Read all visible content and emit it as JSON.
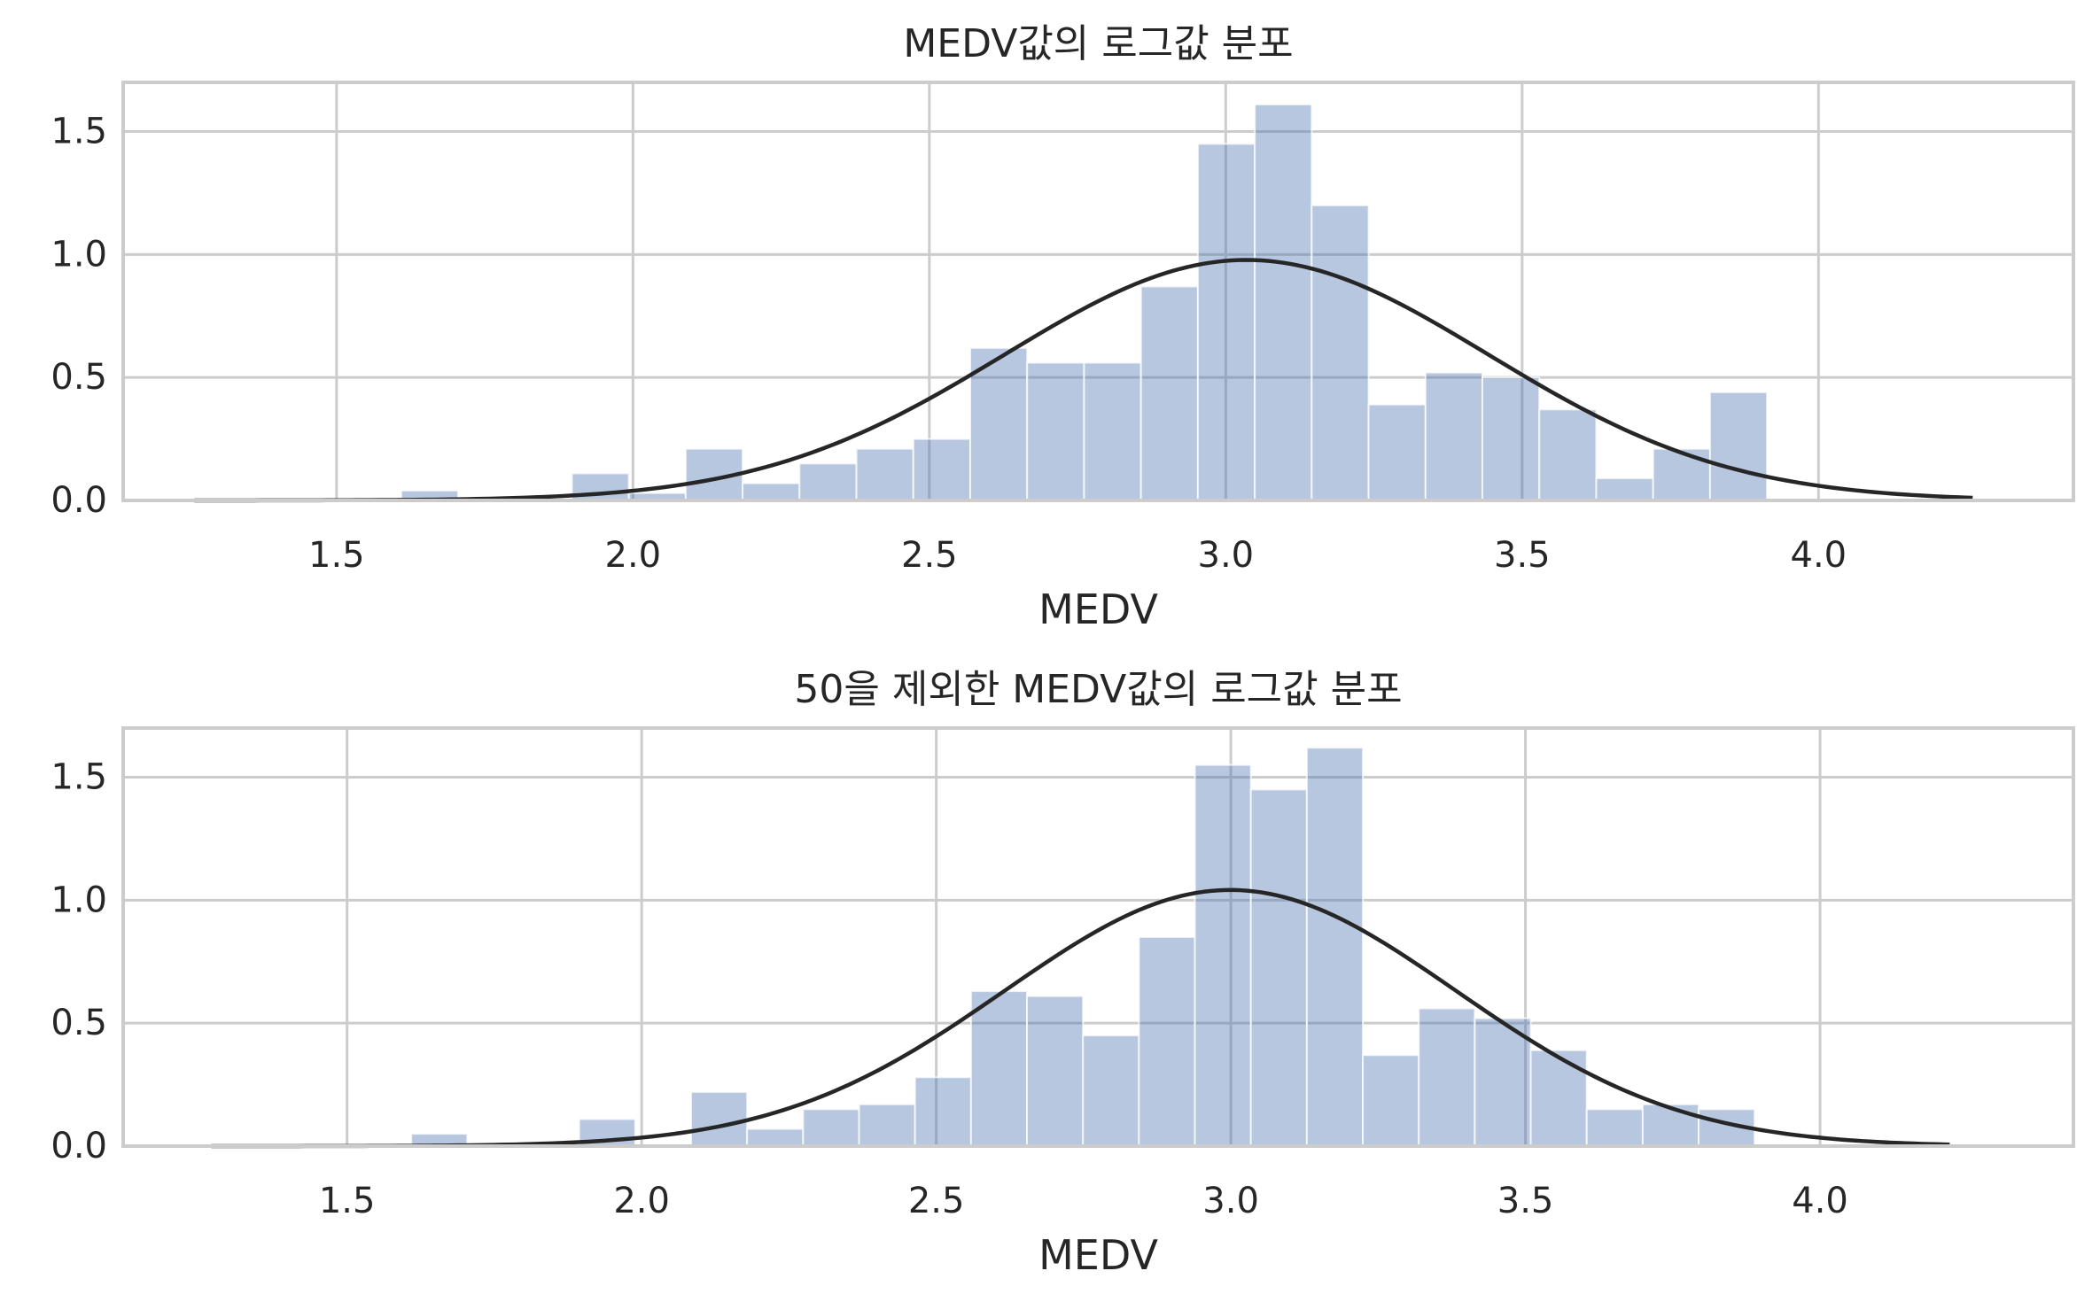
{
  "chart_data": [
    {
      "type": "bar",
      "title": "MEDV값의 로그값 분포",
      "xlabel": "MEDV",
      "ylabel": "",
      "xlim": [
        1.14,
        4.43
      ],
      "ylim": [
        0,
        1.7
      ],
      "xticks": [
        1.5,
        2.0,
        2.5,
        3.0,
        3.5,
        4.0
      ],
      "xtick_labels": [
        "1.5",
        "2.0",
        "2.5",
        "3.0",
        "3.5",
        "4.0"
      ],
      "yticks": [
        0.0,
        0.5,
        1.0,
        1.5
      ],
      "ytick_labels": [
        "0.0",
        "0.5",
        "1.0",
        "1.5"
      ],
      "grid": true,
      "bar_color": "#4c72b0",
      "bar_alpha": 0.4,
      "curve_color": "#262626",
      "bins": {
        "edges": [
          1.609,
          1.705,
          1.801,
          1.897,
          1.993,
          2.089,
          2.185,
          2.281,
          2.377,
          2.473,
          2.569,
          2.665,
          2.761,
          2.857,
          2.953,
          3.049,
          3.145,
          3.241,
          3.337,
          3.433,
          3.529,
          3.625,
          3.721,
          3.817,
          3.913
        ],
        "density": [
          0.04,
          0.0,
          0.0,
          0.11,
          0.03,
          0.21,
          0.07,
          0.15,
          0.21,
          0.25,
          0.62,
          0.56,
          0.56,
          0.87,
          1.45,
          1.61,
          1.2,
          0.39,
          0.52,
          0.5,
          0.37,
          0.09,
          0.21,
          0.44
        ]
      },
      "normal_fit": {
        "mean": 3.035,
        "std": 0.408,
        "x_range": [
          1.26,
          4.26
        ]
      }
    },
    {
      "type": "bar",
      "title": "50을 제외한 MEDV값의 로그값 분포",
      "xlabel": "MEDV",
      "ylabel": "",
      "xlim": [
        1.12,
        4.43
      ],
      "ylim": [
        0,
        1.7
      ],
      "xticks": [
        1.5,
        2.0,
        2.5,
        3.0,
        3.5,
        4.0
      ],
      "xtick_labels": [
        "1.5",
        "2.0",
        "2.5",
        "3.0",
        "3.5",
        "4.0"
      ],
      "yticks": [
        0.0,
        0.5,
        1.0,
        1.5
      ],
      "ytick_labels": [
        "0.0",
        "0.5",
        "1.0",
        "1.5"
      ],
      "grid": true,
      "bar_color": "#4c72b0",
      "bar_alpha": 0.4,
      "curve_color": "#262626",
      "bins": {
        "edges": [
          1.609,
          1.704,
          1.799,
          1.894,
          1.989,
          2.084,
          2.179,
          2.274,
          2.369,
          2.464,
          2.559,
          2.654,
          2.749,
          2.844,
          2.939,
          3.034,
          3.129,
          3.224,
          3.319,
          3.414,
          3.509,
          3.604,
          3.699,
          3.794,
          3.889
        ],
        "density": [
          0.05,
          0.0,
          0.0,
          0.11,
          0.0,
          0.22,
          0.07,
          0.15,
          0.17,
          0.28,
          0.63,
          0.61,
          0.45,
          0.85,
          1.55,
          1.45,
          1.62,
          0.37,
          0.56,
          0.52,
          0.39,
          0.15,
          0.17,
          0.15
        ]
      },
      "normal_fit": {
        "mean": 2.999,
        "std": 0.383,
        "x_range": [
          1.27,
          4.22
        ]
      }
    }
  ]
}
